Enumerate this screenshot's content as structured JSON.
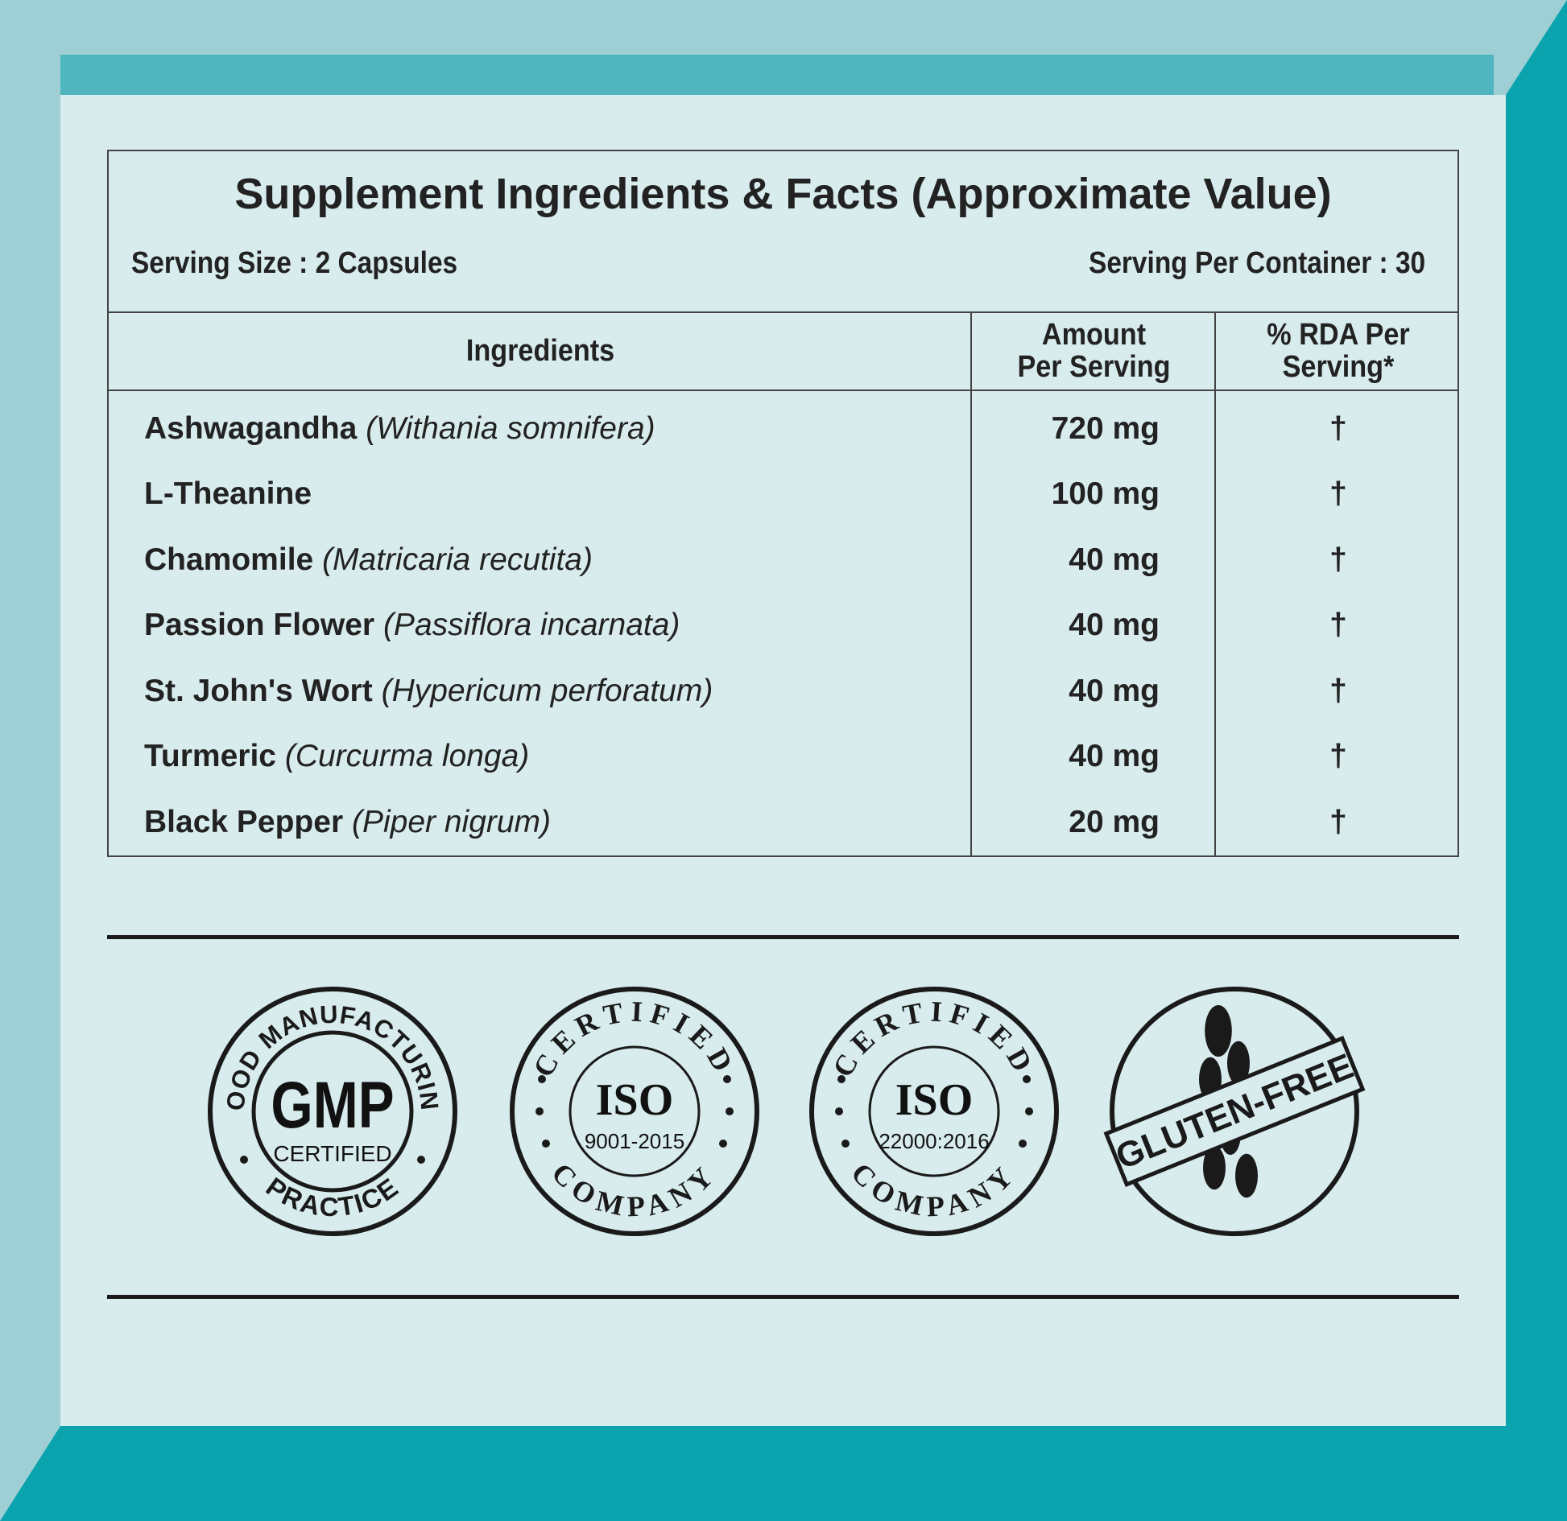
{
  "header": {
    "title": "Supplement Ingredients & Facts (Approximate Value)",
    "serving_size": "Serving Size : 2 Capsules",
    "servings_per_container": "Serving Per Container : 30"
  },
  "table": {
    "columns": [
      [
        "Ingredients"
      ],
      [
        "Amount",
        "Per Serving"
      ],
      [
        "% RDA Per",
        "Serving*"
      ]
    ],
    "rows": [
      {
        "name": "Ashwagandha",
        "latin": "(Withania somnifera)",
        "amount": "720 mg",
        "rda": "†"
      },
      {
        "name": "L-Theanine",
        "amount": "100 mg",
        "rda": "†"
      },
      {
        "name": "Chamomile",
        "latin": "(Matricaria recutita)",
        "amount": "40 mg",
        "rda": "†"
      },
      {
        "name": "Passion Flower",
        "latin": "(Passiflora incarnata)",
        "amount": "40 mg",
        "rda": "†"
      },
      {
        "name": "St. John's Wort",
        "latin": "(Hypericum perforatum)",
        "amount": "40 mg",
        "rda": "†"
      },
      {
        "name": "Turmeric",
        "latin": "(Curcurma longa)",
        "amount": "40 mg",
        "rda": "†"
      },
      {
        "name": "Black Pepper",
        "latin": "(Piper nigrum)",
        "amount": "20 mg",
        "rda": "†"
      }
    ]
  },
  "badges": [
    {
      "top": "GOOD MANUFACTURING",
      "center": "GMP",
      "sub": "CERTIFIED",
      "bottom": "PRACTICE"
    },
    {
      "top": "CERTIFIED",
      "center": "ISO",
      "sub": "9001-2015",
      "bottom": "COMPANY"
    },
    {
      "top": "CERTIFIED",
      "center": "ISO",
      "sub": "22000:2016",
      "bottom": "COMPANY"
    },
    {
      "label": "GLUTEN-FREE"
    }
  ]
}
